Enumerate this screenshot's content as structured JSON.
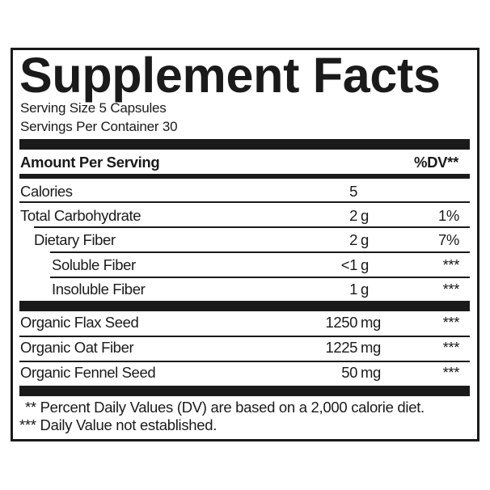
{
  "title": "Supplement Facts",
  "serving_size": "Serving Size 5 Capsules",
  "servings_per_container": "Servings Per Container 30",
  "header": {
    "amount": "Amount Per Serving",
    "dv": "%DV**"
  },
  "rows": [
    {
      "name": "Calories",
      "amount": "5",
      "unit": "",
      "dv": ""
    },
    {
      "name": "Total Carbohydrate",
      "amount": "2",
      "unit": "g",
      "dv": "1%"
    },
    {
      "name": "Dietary Fiber",
      "amount": "2",
      "unit": "g",
      "dv": "7%"
    },
    {
      "name": "Soluble Fiber",
      "amount": "<1",
      "unit": "g",
      "dv": "***"
    },
    {
      "name": "Insoluble Fiber",
      "amount": "1",
      "unit": "g",
      "dv": "***"
    },
    {
      "name": "Organic Flax Seed",
      "amount": "1250",
      "unit": "mg",
      "dv": "***"
    },
    {
      "name": "Organic Oat Fiber",
      "amount": "1225",
      "unit": "mg",
      "dv": "***"
    },
    {
      "name": "Organic Fennel Seed",
      "amount": "50",
      "unit": "mg",
      "dv": "***"
    }
  ],
  "footnotes": [
    "** Percent Daily Values (DV) are based on a 2,000 calorie diet.",
    "*** Daily Value not established."
  ]
}
